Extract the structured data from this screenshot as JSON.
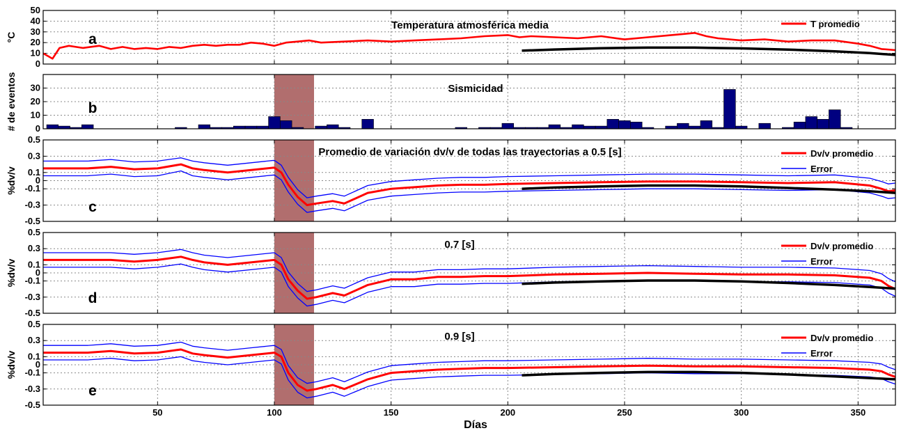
{
  "figure": {
    "xlabel": "Días",
    "xlim": [
      1,
      366
    ],
    "xticks": [
      50,
      100,
      150,
      200,
      250,
      300,
      350
    ],
    "highlight": {
      "x_start": 100,
      "x_end": 117,
      "color": "#a35555"
    },
    "colors": {
      "series_main": "#ff0000",
      "series_error": "#0000ff",
      "trend": "#000000",
      "bars": "#000080"
    }
  },
  "chart_data": [
    {
      "panel": "a",
      "type": "line",
      "title": "Temperatura atmosférica media",
      "ylabel": "°C",
      "ylim": [
        0,
        50
      ],
      "yticks": [
        0,
        10,
        20,
        30,
        40,
        50
      ],
      "grid": true,
      "legend_position": "top-right",
      "series": [
        {
          "name": "T promedio",
          "x": [
            1,
            5,
            8,
            12,
            18,
            25,
            30,
            35,
            40,
            45,
            50,
            55,
            60,
            65,
            70,
            75,
            80,
            85,
            90,
            95,
            100,
            105,
            110,
            115,
            120,
            130,
            140,
            150,
            160,
            170,
            180,
            190,
            200,
            205,
            210,
            220,
            230,
            240,
            250,
            260,
            270,
            275,
            280,
            285,
            290,
            300,
            310,
            320,
            330,
            340,
            350,
            355,
            360,
            366
          ],
          "values": [
            10,
            5,
            15,
            17,
            15,
            17,
            14,
            16,
            14,
            15,
            14,
            16,
            15,
            17,
            18,
            17,
            18,
            18,
            20,
            19,
            17,
            20,
            21,
            22,
            20,
            21,
            22,
            21,
            22,
            23,
            24,
            26,
            27,
            25,
            26,
            25,
            24,
            26,
            23,
            25,
            27,
            28,
            29,
            26,
            24,
            22,
            23,
            21,
            22,
            22,
            19,
            17,
            14,
            13
          ]
        }
      ],
      "trend": {
        "x": [
          206,
          220,
          240,
          260,
          280,
          300,
          320,
          340,
          355,
          366
        ],
        "values": [
          12.5,
          13.6,
          14.8,
          15.3,
          15.3,
          14.6,
          13.5,
          11.8,
          10.2,
          8.5
        ]
      }
    },
    {
      "panel": "b",
      "type": "bar",
      "title": "Sismicidad",
      "ylabel": "# de eventos",
      "ylim": [
        0,
        40
      ],
      "yticks": [
        0,
        10,
        20,
        30
      ],
      "grid": true,
      "categories": [
        5,
        10,
        15,
        20,
        60,
        70,
        75,
        80,
        85,
        90,
        95,
        100,
        105,
        110,
        120,
        125,
        130,
        140,
        180,
        190,
        195,
        200,
        205,
        210,
        215,
        220,
        225,
        230,
        235,
        240,
        245,
        250,
        255,
        260,
        270,
        275,
        280,
        285,
        290,
        295,
        300,
        310,
        320,
        325,
        330,
        335,
        340,
        345
      ],
      "values": [
        3,
        2,
        1,
        3,
        1,
        3,
        1,
        1,
        2,
        2,
        2,
        9,
        6,
        1,
        2,
        3,
        1,
        7,
        1,
        1,
        1,
        4,
        1,
        1,
        1,
        3,
        1,
        3,
        2,
        2,
        7,
        6,
        5,
        1,
        2,
        4,
        2,
        6,
        1,
        29,
        2,
        4,
        1,
        5,
        9,
        7,
        14,
        1
      ]
    },
    {
      "panel": "c",
      "type": "line",
      "title": "Promedio de variación dv/v de todas las trayectorias a 0.5 [s]",
      "ylabel": "%dv/v",
      "ylim": [
        -0.5,
        0.5
      ],
      "yticks": [
        -0.5,
        -0.3,
        -0.1,
        0,
        0.1,
        0.3,
        0.5
      ],
      "grid": true,
      "legend_position": "top-right",
      "series": [
        {
          "name": "Dv/v promedio",
          "x": [
            1,
            20,
            30,
            40,
            50,
            60,
            65,
            70,
            80,
            90,
            100,
            103,
            106,
            110,
            114,
            118,
            125,
            130,
            140,
            150,
            160,
            170,
            180,
            190,
            200,
            220,
            240,
            260,
            280,
            300,
            320,
            340,
            355,
            360,
            363,
            366
          ],
          "values": [
            0.15,
            0.15,
            0.17,
            0.14,
            0.15,
            0.2,
            0.15,
            0.13,
            0.1,
            0.13,
            0.16,
            0.1,
            -0.05,
            -0.2,
            -0.3,
            -0.28,
            -0.25,
            -0.28,
            -0.15,
            -0.1,
            -0.08,
            -0.06,
            -0.05,
            -0.05,
            -0.04,
            -0.03,
            -0.02,
            -0.01,
            -0.01,
            -0.02,
            -0.03,
            -0.02,
            -0.06,
            -0.1,
            -0.13,
            -0.12
          ]
        },
        {
          "name": "Error",
          "x": [
            1,
            20,
            30,
            40,
            50,
            60,
            65,
            70,
            80,
            90,
            100,
            103,
            106,
            110,
            114,
            118,
            125,
            130,
            140,
            150,
            160,
            170,
            180,
            190,
            200,
            220,
            240,
            260,
            280,
            300,
            320,
            340,
            355,
            360,
            363,
            366
          ],
          "values": [
            0.24,
            0.24,
            0.26,
            0.23,
            0.24,
            0.28,
            0.24,
            0.22,
            0.19,
            0.22,
            0.25,
            0.19,
            0.04,
            -0.11,
            -0.21,
            -0.19,
            -0.16,
            -0.19,
            -0.06,
            -0.01,
            0.01,
            0.03,
            0.04,
            0.04,
            0.05,
            0.06,
            0.07,
            0.08,
            0.08,
            0.07,
            0.06,
            0.07,
            0.03,
            -0.01,
            -0.04,
            -0.03
          ]
        }
      ],
      "trend": {
        "x": [
          206,
          220,
          240,
          260,
          280,
          300,
          320,
          340,
          355,
          366
        ],
        "values": [
          -0.1,
          -0.085,
          -0.07,
          -0.06,
          -0.06,
          -0.07,
          -0.09,
          -0.11,
          -0.13,
          -0.15
        ]
      }
    },
    {
      "panel": "d",
      "type": "line",
      "title": "0.7 [s]",
      "ylabel": "%dv/v",
      "ylim": [
        -0.5,
        0.5
      ],
      "yticks": [
        -0.5,
        -0.3,
        -0.1,
        0,
        0.1,
        0.3,
        0.5
      ],
      "grid": true,
      "legend_position": "top-right",
      "series": [
        {
          "name": "Dv/v promedio",
          "x": [
            1,
            20,
            30,
            40,
            50,
            60,
            65,
            70,
            80,
            90,
            100,
            103,
            106,
            110,
            114,
            118,
            125,
            130,
            140,
            150,
            160,
            170,
            180,
            190,
            200,
            220,
            240,
            260,
            280,
            300,
            320,
            340,
            355,
            360,
            363,
            366
          ],
          "values": [
            0.16,
            0.16,
            0.16,
            0.14,
            0.16,
            0.2,
            0.16,
            0.13,
            0.1,
            0.13,
            0.16,
            0.1,
            -0.08,
            -0.22,
            -0.32,
            -0.3,
            -0.25,
            -0.28,
            -0.15,
            -0.08,
            -0.08,
            -0.05,
            -0.05,
            -0.04,
            -0.04,
            -0.02,
            -0.01,
            0,
            -0.01,
            -0.02,
            -0.02,
            -0.03,
            -0.06,
            -0.1,
            -0.16,
            -0.2
          ]
        },
        {
          "name": "Error",
          "x": [
            1,
            20,
            30,
            40,
            50,
            60,
            65,
            70,
            80,
            90,
            100,
            103,
            106,
            110,
            114,
            118,
            125,
            130,
            140,
            150,
            160,
            170,
            180,
            190,
            200,
            220,
            240,
            260,
            280,
            300,
            320,
            340,
            355,
            360,
            363,
            366
          ],
          "values": [
            0.25,
            0.25,
            0.25,
            0.23,
            0.25,
            0.29,
            0.25,
            0.22,
            0.19,
            0.22,
            0.25,
            0.19,
            0.01,
            -0.13,
            -0.23,
            -0.21,
            -0.16,
            -0.19,
            -0.06,
            0.01,
            0.01,
            0.04,
            0.04,
            0.05,
            0.05,
            0.07,
            0.08,
            0.09,
            0.08,
            0.07,
            0.07,
            0.06,
            0.03,
            -0.01,
            -0.07,
            -0.11
          ]
        }
      ],
      "trend": {
        "x": [
          206,
          220,
          240,
          260,
          280,
          300,
          320,
          340,
          355,
          366
        ],
        "values": [
          -0.135,
          -0.12,
          -0.105,
          -0.095,
          -0.095,
          -0.105,
          -0.125,
          -0.15,
          -0.175,
          -0.195
        ]
      }
    },
    {
      "panel": "e",
      "type": "line",
      "title": "0.9 [s]",
      "ylabel": "%dv/v",
      "ylim": [
        -0.5,
        0.5
      ],
      "yticks": [
        -0.5,
        -0.3,
        -0.1,
        0,
        0.1,
        0.3,
        0.5
      ],
      "grid": true,
      "legend_position": "top-right",
      "series": [
        {
          "name": "Dv/v promedio",
          "x": [
            1,
            20,
            30,
            40,
            50,
            60,
            65,
            70,
            80,
            90,
            100,
            103,
            106,
            110,
            114,
            118,
            125,
            130,
            140,
            150,
            160,
            170,
            180,
            190,
            200,
            220,
            240,
            260,
            280,
            300,
            320,
            340,
            355,
            360,
            363,
            366
          ],
          "values": [
            0.15,
            0.15,
            0.17,
            0.14,
            0.15,
            0.19,
            0.14,
            0.12,
            0.09,
            0.12,
            0.15,
            0.1,
            -0.1,
            -0.25,
            -0.32,
            -0.3,
            -0.25,
            -0.3,
            -0.18,
            -0.1,
            -0.08,
            -0.06,
            -0.05,
            -0.04,
            -0.04,
            -0.03,
            -0.02,
            -0.01,
            -0.02,
            -0.02,
            -0.03,
            -0.04,
            -0.06,
            -0.08,
            -0.12,
            -0.15
          ]
        },
        {
          "name": "Error",
          "x": [
            1,
            20,
            30,
            40,
            50,
            60,
            65,
            70,
            80,
            90,
            100,
            103,
            106,
            110,
            114,
            118,
            125,
            130,
            140,
            150,
            160,
            170,
            180,
            190,
            200,
            220,
            240,
            260,
            280,
            300,
            320,
            340,
            355,
            360,
            363,
            366
          ],
          "values": [
            0.24,
            0.24,
            0.26,
            0.23,
            0.24,
            0.28,
            0.23,
            0.21,
            0.18,
            0.21,
            0.24,
            0.19,
            -0.01,
            -0.16,
            -0.23,
            -0.21,
            -0.16,
            -0.21,
            -0.09,
            -0.01,
            0.01,
            0.03,
            0.04,
            0.05,
            0.05,
            0.06,
            0.07,
            0.08,
            0.07,
            0.07,
            0.06,
            0.05,
            0.03,
            0.01,
            -0.03,
            -0.06
          ]
        }
      ],
      "trend": {
        "x": [
          206,
          220,
          240,
          260,
          280,
          300,
          320,
          340,
          355,
          366
        ],
        "values": [
          -0.13,
          -0.115,
          -0.1,
          -0.09,
          -0.09,
          -0.1,
          -0.12,
          -0.145,
          -0.165,
          -0.18
        ]
      }
    }
  ]
}
